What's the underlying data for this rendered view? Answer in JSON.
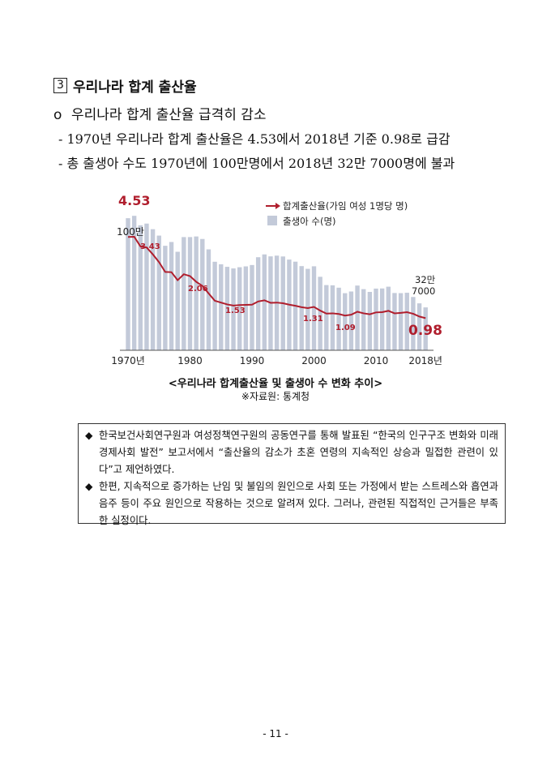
{
  "section": {
    "number": "3",
    "title": "우리나라 합계 출산율",
    "bullet_marker": "o",
    "bullet_text": "우리나라 합계 출산율 급격히 감소",
    "dash_items": [
      "- 1970년 우리나라 합계 출산율은 4.53에서 2018년 기준 0.98로 급감",
      "- 총 출생아 수도 1970년에 100만명에서 2018년 32만 7000명에 불과"
    ]
  },
  "figure": {
    "caption": "<우리나라 합계출산율 및 출생아 수 변화 추이>",
    "source": "※자료원: 통계청"
  },
  "chart_data": {
    "type": "bar",
    "legend_placement": "top-right",
    "grid": false,
    "x_tick_labels": [
      "1970년",
      "1980",
      "1990",
      "2000",
      "2010",
      "2018년"
    ],
    "x": [
      1970,
      1971,
      1972,
      1973,
      1974,
      1975,
      1976,
      1977,
      1978,
      1979,
      1980,
      1981,
      1982,
      1983,
      1984,
      1985,
      1986,
      1987,
      1988,
      1989,
      1990,
      1991,
      1992,
      1993,
      1994,
      1995,
      1996,
      1997,
      1998,
      1999,
      2000,
      2001,
      2002,
      2003,
      2004,
      2005,
      2006,
      2007,
      2008,
      2009,
      2010,
      2011,
      2012,
      2013,
      2014,
      2015,
      2016,
      2017,
      2018
    ],
    "ylim": [
      0,
      5
    ],
    "series": [
      {
        "name": "합계출산율(가임 여성 1명당 명)",
        "type": "line",
        "color": "#b01e2d",
        "values": [
          4.53,
          4.54,
          4.12,
          4.07,
          3.77,
          3.43,
          3.0,
          2.99,
          2.64,
          2.9,
          2.82,
          2.57,
          2.39,
          2.06,
          1.74,
          1.66,
          1.58,
          1.53,
          1.55,
          1.56,
          1.57,
          1.71,
          1.76,
          1.65,
          1.66,
          1.63,
          1.57,
          1.52,
          1.46,
          1.42,
          1.47,
          1.31,
          1.18,
          1.19,
          1.16,
          1.09,
          1.13,
          1.26,
          1.19,
          1.15,
          1.23,
          1.24,
          1.3,
          1.19,
          1.21,
          1.24,
          1.17,
          1.05,
          0.98
        ]
      },
      {
        "name": "출생아 수(명)",
        "type": "bar",
        "color": "#c3cad9",
        "values": [
          1006645,
          1024773,
          952780,
          965521,
          922823,
          874030,
          796331,
          825339,
          750728,
          862669,
          862835,
          867409,
          848312,
          769155,
          674793,
          655489,
          636019,
          623831,
          633092,
          639431,
          649738,
          709275,
          730678,
          715826,
          721185,
          715020,
          691226,
          675394,
          641594,
          620668,
          640089,
          559934,
          496911,
          495036,
          476958,
          435031,
          448153,
          493189,
          465892,
          444849,
          470171,
          471265,
          484550,
          436455,
          435435,
          438420,
          406243,
          357771,
          326822
        ]
      }
    ],
    "annotations": {
      "start_rate": "4.53",
      "start_births": "100만",
      "rate_1975": "3.43",
      "rate_1983": "2.06",
      "rate_1987": "1.53",
      "rate_2001": "1.31",
      "rate_2005": "1.09",
      "end_rate": "0.98",
      "end_births_line1": "32만",
      "end_births_line2": "7000"
    }
  },
  "notes": [
    "한국보건사회연구원과 여성정책연구원의 공동연구를 통해 발표된 “한국의 인구구조 변화와 미래 경제사회 발전” 보고서에서 “출산율의 감소가 초혼 연령의 지속적인 상승과 밀접한 관련이 있다”고 제언하였다.",
    "한편, 지속적으로 증가하는 난임 및 불임의 원인으로 사회 또는 가정에서 받는 스트레스와 흡연과 음주 등이 주요 원인으로 작용하는 것으로 알려져 있다. 그러나, 관련된 직접적인 근거들은 부족한 실정이다."
  ],
  "note_marker": "◆",
  "page_number": "- 11 -"
}
